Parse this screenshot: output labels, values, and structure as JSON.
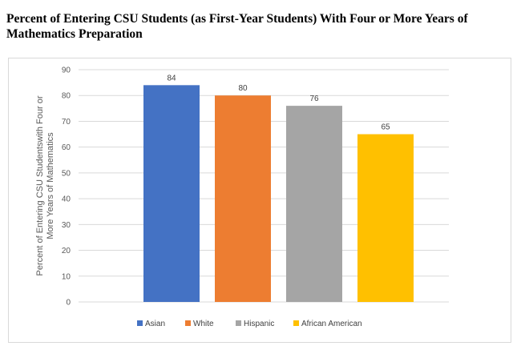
{
  "title": "Percent of Entering CSU Students (as First-Year Students) With Four or More Years of Mathematics Preparation",
  "chart_data": {
    "type": "bar",
    "series": [
      {
        "name": "Asian",
        "value": 84,
        "color": "#4472C4"
      },
      {
        "name": "White",
        "value": 80,
        "color": "#ED7D31"
      },
      {
        "name": "Hispanic",
        "value": 76,
        "color": "#A5A5A5"
      },
      {
        "name": "African American",
        "value": 65,
        "color": "#FFC000"
      }
    ],
    "ylabel_lines": [
      "Percent of Entering CSU Studentswith Four or",
      "More Years of Mathematics"
    ],
    "ylim": [
      0,
      90
    ],
    "yticks": [
      0,
      10,
      20,
      30,
      40,
      50,
      60,
      70,
      80,
      90
    ],
    "grid": true,
    "legend": "bottom"
  }
}
